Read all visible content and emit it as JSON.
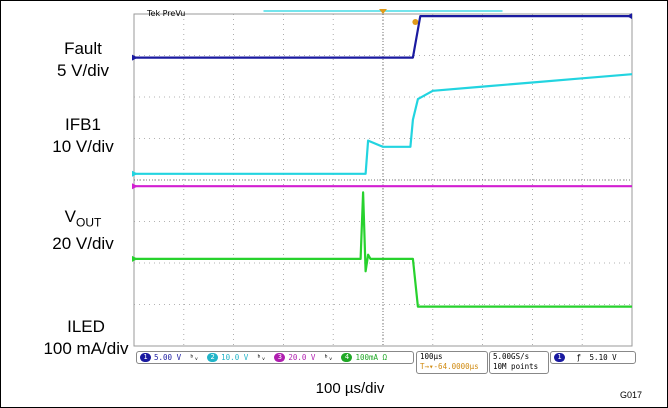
{
  "scope_title": "Tek PreVu",
  "channel_labels": [
    {
      "name": "Fault",
      "scale": "5 V/div"
    },
    {
      "name": "IFB1",
      "scale": "10 V/div"
    },
    {
      "name": "V",
      "sub": "OUT",
      "scale": "20 V/div"
    },
    {
      "name": "ILED",
      "scale": "100 mA/div"
    }
  ],
  "status_bar": {
    "ch1": "5.00 V",
    "ch2": "10.0 V",
    "ch3": "20.0 V",
    "ch4": "100mA Ω",
    "timebase": "100µs",
    "trigger_pos": "-64.0000µs",
    "sample_rate": "5.00GS/s",
    "record": "10M points",
    "trigger_level": "5.10 V"
  },
  "x_label": "100 µs/div",
  "figure_id": "G017",
  "colors": {
    "ch1": "#1a1aa0",
    "ch2": "#22d4e0",
    "ch3": "#d21fd2",
    "ch4": "#27d22d",
    "grid": "#9a9a9a",
    "trigger_marker": "#e09a1a"
  },
  "chart_data": {
    "type": "line",
    "x_unit": "div",
    "y_unit": "div",
    "xlim": [
      0,
      10
    ],
    "ylim": [
      -4,
      4
    ],
    "grid": true,
    "series": [
      {
        "name": "Fault",
        "x": [
          0,
          5.6,
          5.75,
          10
        ],
        "y": [
          2.95,
          2.95,
          3.95,
          3.95
        ]
      },
      {
        "name": "IFB1",
        "x": [
          0,
          4.65,
          4.7,
          5.0,
          5.55,
          5.6,
          5.7,
          6.0,
          7.0,
          8.0,
          9.0,
          10.0
        ],
        "y": [
          0.15,
          0.15,
          0.95,
          0.8,
          0.8,
          1.45,
          1.95,
          2.15,
          2.25,
          2.35,
          2.45,
          2.55
        ]
      },
      {
        "name": "V_OUT",
        "x": [
          0,
          10
        ],
        "y": [
          -0.15,
          -0.15
        ]
      },
      {
        "name": "ILED",
        "x": [
          0,
          4.55,
          4.6,
          4.65,
          4.7,
          4.75,
          5.6,
          5.7,
          10
        ],
        "y": [
          -1.9,
          -1.9,
          -0.3,
          -2.2,
          -1.8,
          -1.9,
          -1.9,
          -3.05,
          -3.05
        ]
      }
    ],
    "annotations": [
      "Fault",
      "5 V/div",
      "IFB1",
      "10 V/div",
      "V_OUT",
      "20 V/div",
      "ILED",
      "100 mA/div"
    ],
    "xlabel": "100 µs/div"
  }
}
